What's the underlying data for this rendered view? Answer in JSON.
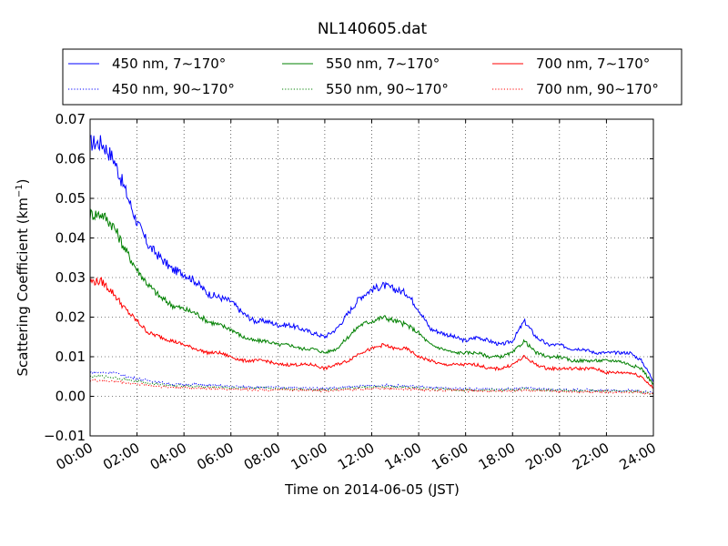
{
  "chart_data": {
    "type": "line",
    "title": "NL140605.dat",
    "xlabel": "Time on 2014-06-05 (JST)",
    "ylabel": "Scattering Coefficient (km",
    "ylabel_sup": "−1",
    "ylabel_close": ")",
    "xlim": [
      0,
      24
    ],
    "ylim": [
      -0.01,
      0.07
    ],
    "grid": true,
    "legend_position": "top, above plot",
    "x_ticks": [
      0,
      2,
      4,
      6,
      8,
      10,
      12,
      14,
      16,
      18,
      20,
      22,
      24
    ],
    "x_tick_labels": [
      "00:00",
      "02:00",
      "04:00",
      "06:00",
      "08:00",
      "10:00",
      "12:00",
      "14:00",
      "16:00",
      "18:00",
      "20:00",
      "22:00",
      "24:00"
    ],
    "y_ticks": [
      -0.01,
      0.0,
      0.01,
      0.02,
      0.03,
      0.04,
      0.05,
      0.06,
      0.07
    ],
    "y_tick_labels": [
      "−0.01",
      "0.00",
      "0.01",
      "0.02",
      "0.03",
      "0.04",
      "0.05",
      "0.06",
      "0.07"
    ],
    "x": [
      0,
      0.5,
      1,
      1.5,
      2,
      2.5,
      3,
      3.5,
      4,
      4.5,
      5,
      5.5,
      6,
      6.5,
      7,
      7.5,
      8,
      8.5,
      9,
      9.5,
      10,
      10.5,
      11,
      11.5,
      12,
      12.5,
      13,
      13.5,
      14,
      14.5,
      15,
      15.5,
      16,
      16.5,
      17,
      17.5,
      18,
      18.5,
      19,
      19.5,
      20,
      20.5,
      21,
      21.5,
      22,
      22.5,
      23,
      23.5,
      24
    ],
    "series": [
      {
        "name": "450 nm, 7∼170°",
        "color": "#0000ff",
        "style": "solid",
        "values": [
          0.064,
          0.064,
          0.06,
          0.052,
          0.044,
          0.038,
          0.035,
          0.032,
          0.031,
          0.029,
          0.026,
          0.025,
          0.024,
          0.021,
          0.019,
          0.019,
          0.018,
          0.018,
          0.017,
          0.016,
          0.015,
          0.017,
          0.021,
          0.025,
          0.027,
          0.028,
          0.027,
          0.026,
          0.022,
          0.017,
          0.016,
          0.015,
          0.014,
          0.015,
          0.014,
          0.013,
          0.014,
          0.019,
          0.015,
          0.013,
          0.013,
          0.012,
          0.012,
          0.011,
          0.011,
          0.011,
          0.011,
          0.009,
          0.004
        ]
      },
      {
        "name": "550 nm, 7∼170°",
        "color": "#008000",
        "style": "solid",
        "values": [
          0.046,
          0.046,
          0.043,
          0.037,
          0.032,
          0.028,
          0.025,
          0.023,
          0.022,
          0.021,
          0.019,
          0.018,
          0.017,
          0.015,
          0.014,
          0.014,
          0.013,
          0.013,
          0.012,
          0.012,
          0.011,
          0.012,
          0.015,
          0.018,
          0.019,
          0.02,
          0.019,
          0.018,
          0.016,
          0.013,
          0.012,
          0.011,
          0.011,
          0.011,
          0.01,
          0.01,
          0.011,
          0.014,
          0.011,
          0.01,
          0.01,
          0.009,
          0.009,
          0.009,
          0.009,
          0.009,
          0.008,
          0.007,
          0.003
        ]
      },
      {
        "name": "700 nm, 7∼170°",
        "color": "#ff0000",
        "style": "solid",
        "values": [
          0.029,
          0.029,
          0.026,
          0.022,
          0.019,
          0.016,
          0.015,
          0.014,
          0.013,
          0.012,
          0.011,
          0.011,
          0.01,
          0.009,
          0.009,
          0.009,
          0.008,
          0.008,
          0.008,
          0.008,
          0.007,
          0.008,
          0.009,
          0.011,
          0.012,
          0.013,
          0.012,
          0.012,
          0.01,
          0.009,
          0.008,
          0.008,
          0.008,
          0.008,
          0.007,
          0.007,
          0.008,
          0.01,
          0.008,
          0.007,
          0.007,
          0.007,
          0.007,
          0.007,
          0.006,
          0.006,
          0.006,
          0.005,
          0.002
        ]
      },
      {
        "name": "450 nm, 90∼170°",
        "color": "#0000ff",
        "style": "dotted",
        "values": [
          0.006,
          0.006,
          0.006,
          0.005,
          0.0045,
          0.004,
          0.0035,
          0.003,
          0.003,
          0.003,
          0.0028,
          0.0027,
          0.0025,
          0.0024,
          0.0023,
          0.0023,
          0.0022,
          0.0022,
          0.0021,
          0.002,
          0.002,
          0.0021,
          0.0023,
          0.0025,
          0.0027,
          0.0028,
          0.0027,
          0.0026,
          0.0024,
          0.0022,
          0.002,
          0.002,
          0.0019,
          0.0019,
          0.0018,
          0.0018,
          0.0019,
          0.0022,
          0.0019,
          0.0017,
          0.0017,
          0.0016,
          0.0016,
          0.0016,
          0.0015,
          0.0015,
          0.0015,
          0.0013,
          0.0008
        ]
      },
      {
        "name": "550 nm, 90∼170°",
        "color": "#008000",
        "style": "dotted",
        "values": [
          0.005,
          0.005,
          0.0048,
          0.0043,
          0.0038,
          0.0033,
          0.003,
          0.0027,
          0.0026,
          0.0025,
          0.0024,
          0.0023,
          0.0022,
          0.0021,
          0.002,
          0.002,
          0.0019,
          0.0019,
          0.0018,
          0.0017,
          0.0017,
          0.0018,
          0.002,
          0.0022,
          0.0023,
          0.0024,
          0.0023,
          0.0022,
          0.002,
          0.0019,
          0.0018,
          0.0017,
          0.0016,
          0.0016,
          0.0016,
          0.0015,
          0.0016,
          0.0019,
          0.0016,
          0.0015,
          0.0015,
          0.0014,
          0.0014,
          0.0014,
          0.0013,
          0.0013,
          0.0013,
          0.0011,
          0.0006
        ]
      },
      {
        "name": "700 nm, 90∼170°",
        "color": "#ff0000",
        "style": "dotted",
        "values": [
          0.004,
          0.004,
          0.0038,
          0.0035,
          0.0031,
          0.0028,
          0.0025,
          0.0023,
          0.0022,
          0.0021,
          0.002,
          0.0019,
          0.0018,
          0.0017,
          0.0017,
          0.0016,
          0.0016,
          0.0016,
          0.0015,
          0.0015,
          0.0014,
          0.0015,
          0.0016,
          0.0018,
          0.0019,
          0.002,
          0.0019,
          0.0019,
          0.0017,
          0.0016,
          0.0015,
          0.0015,
          0.0014,
          0.0014,
          0.0013,
          0.0013,
          0.0014,
          0.0016,
          0.0014,
          0.0013,
          0.0012,
          0.0012,
          0.0012,
          0.0012,
          0.0011,
          0.0011,
          0.0011,
          0.001,
          0.0005
        ]
      }
    ],
    "legend_order": [
      0,
      1,
      2,
      3,
      4,
      5
    ]
  }
}
